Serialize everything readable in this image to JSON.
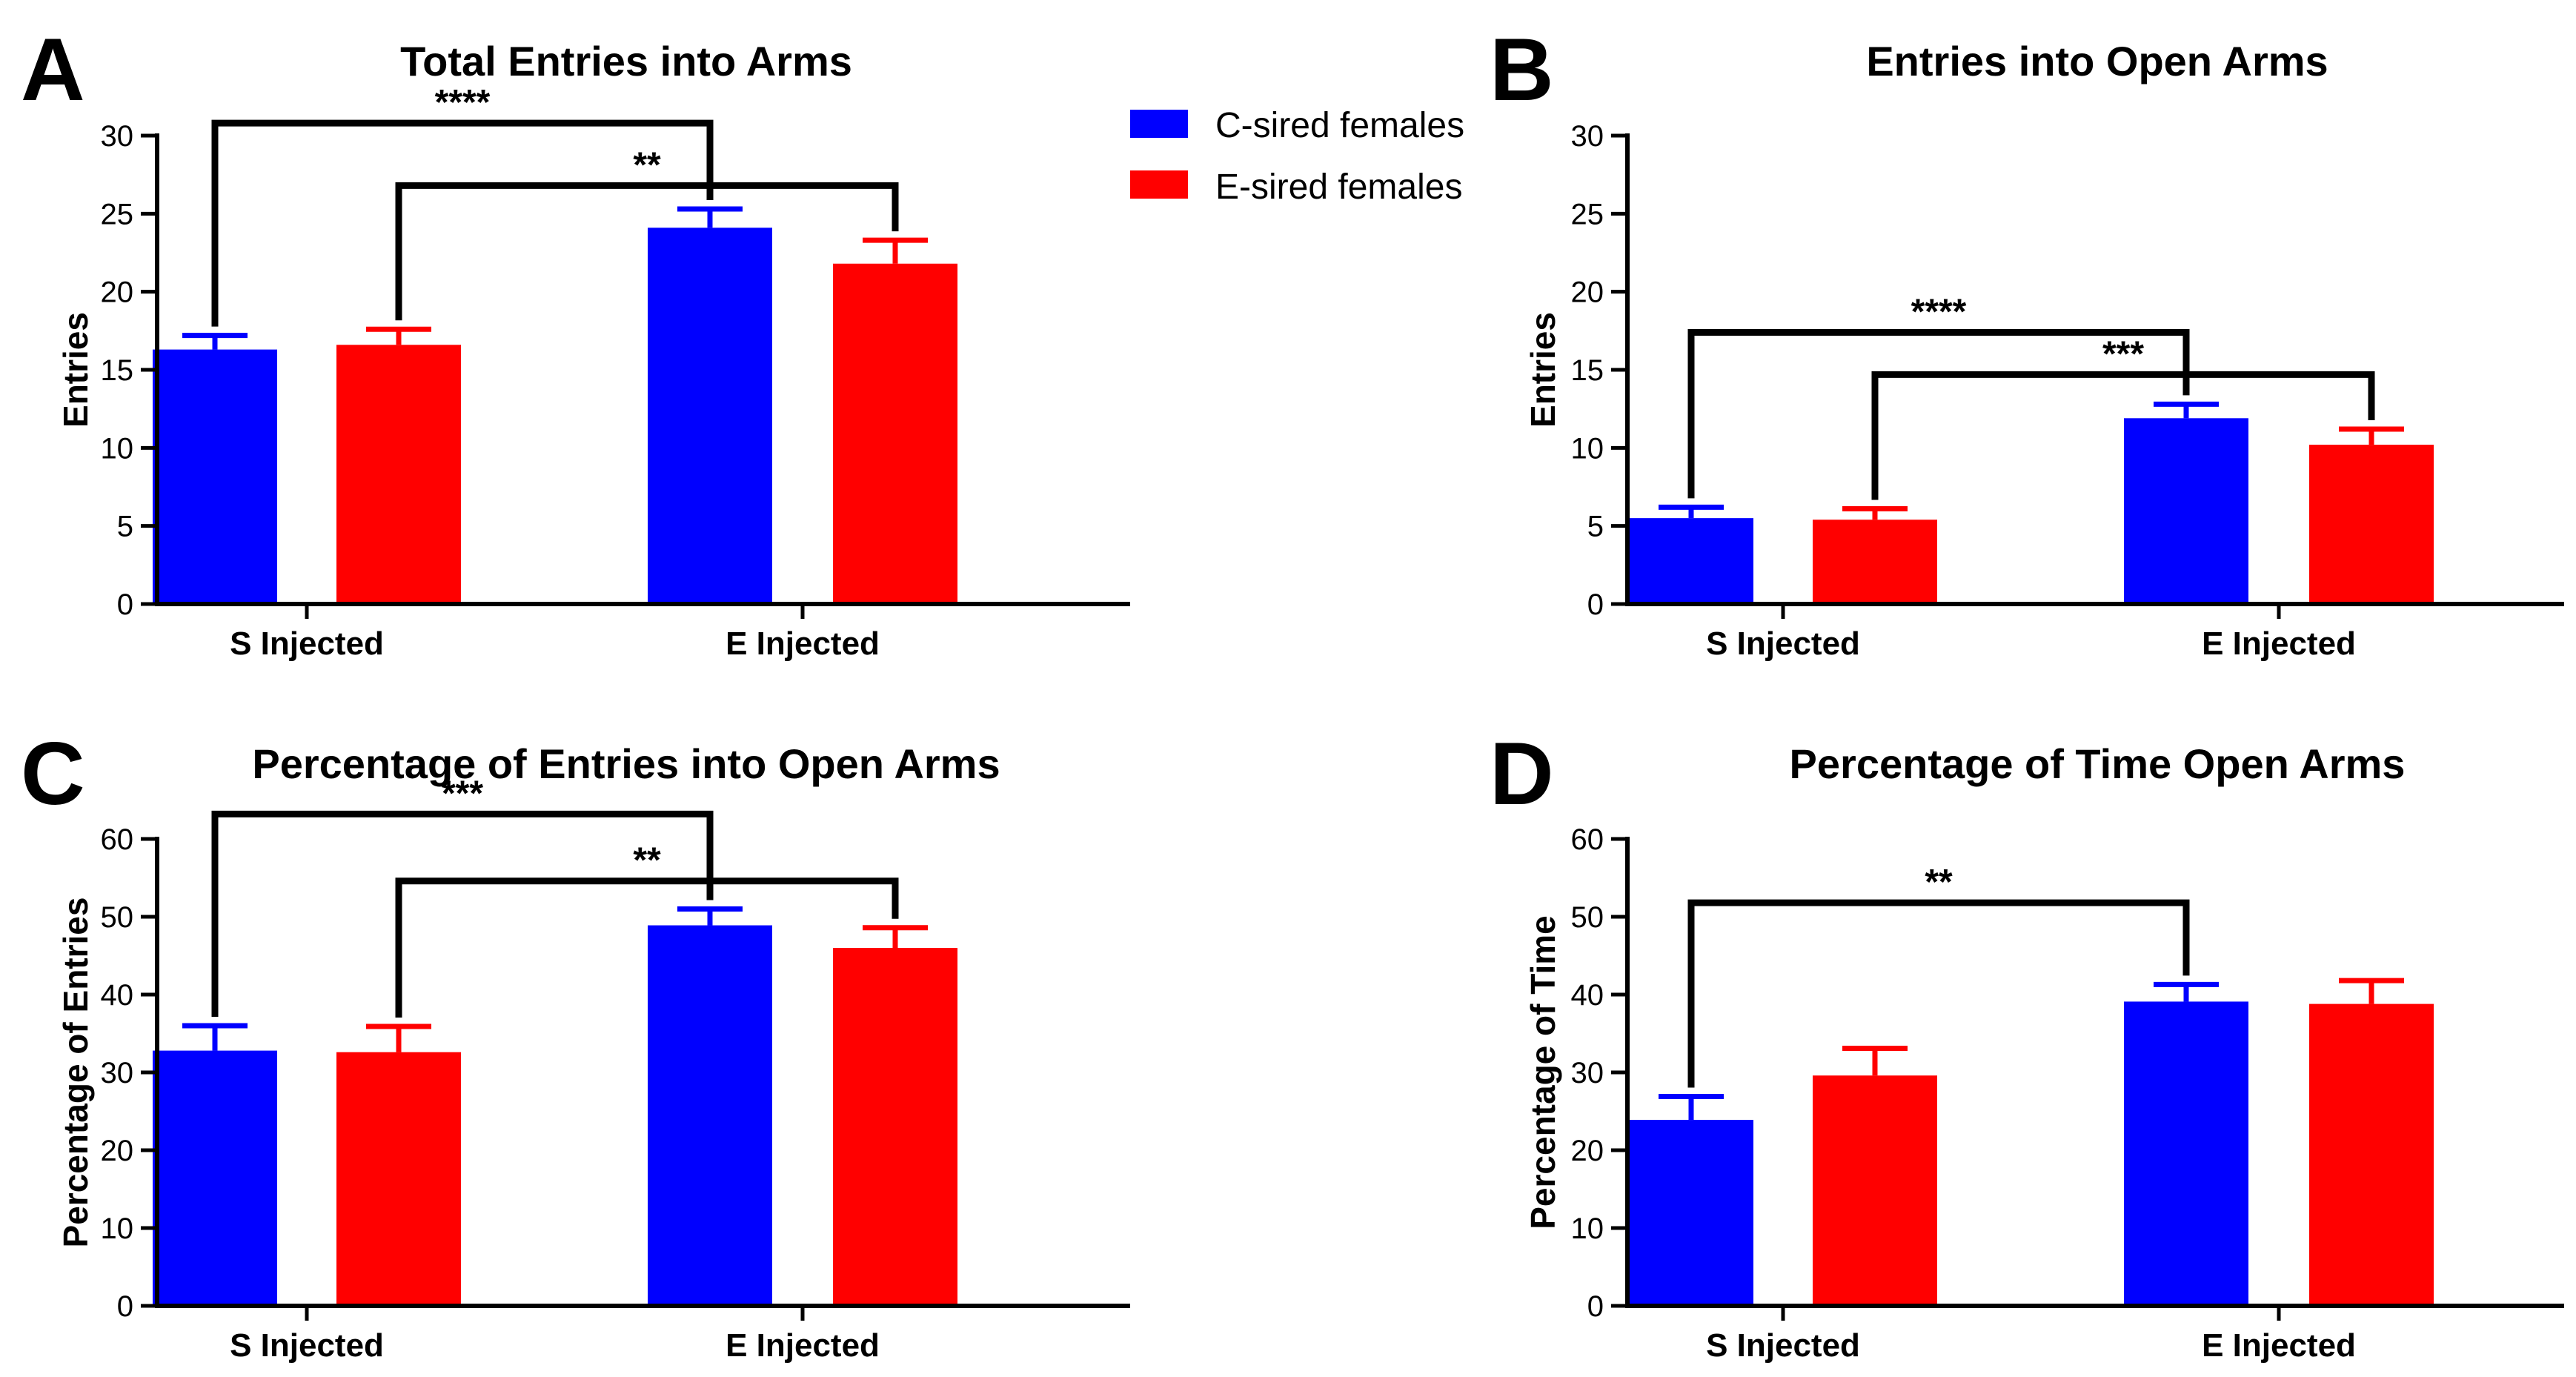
{
  "colors": {
    "c_sired": "#0000ff",
    "e_sired": "#ff0000",
    "axis": "#000000"
  },
  "legend": [
    {
      "label": "C-sired females",
      "color": "#0000ff"
    },
    {
      "label": "E-sired females",
      "color": "#ff0000"
    }
  ],
  "chart_data": [
    {
      "panel": "A",
      "type": "bar",
      "title": "Total Entries into Arms",
      "ylabel": "Entries",
      "xlabel": "",
      "ylim": [
        0,
        30
      ],
      "yticks": [
        0,
        5,
        10,
        15,
        20,
        25,
        30
      ],
      "categories": [
        "S Injected",
        "E Injected"
      ],
      "series": [
        {
          "name": "C-sired females",
          "values": [
            16.3,
            24.1
          ],
          "errors": [
            0.9,
            1.2
          ]
        },
        {
          "name": "E-sired females",
          "values": [
            16.6,
            21.8
          ],
          "errors": [
            1.0,
            1.5
          ]
        }
      ],
      "significance": [
        {
          "label": "****",
          "from": [
            0,
            0
          ],
          "to": [
            1,
            0
          ],
          "y": 30.8
        },
        {
          "label": "**",
          "from": [
            0,
            1
          ],
          "to": [
            1,
            1
          ],
          "y": 26.8
        }
      ]
    },
    {
      "panel": "B",
      "type": "bar",
      "title": "Entries into Open Arms",
      "ylabel": "Entries",
      "xlabel": "",
      "ylim": [
        0,
        30
      ],
      "yticks": [
        0,
        5,
        10,
        15,
        20,
        25,
        30
      ],
      "categories": [
        "S Injected",
        "E Injected"
      ],
      "series": [
        {
          "name": "C-sired females",
          "values": [
            5.5,
            11.9
          ],
          "errors": [
            0.7,
            0.9
          ]
        },
        {
          "name": "E-sired females",
          "values": [
            5.4,
            10.2
          ],
          "errors": [
            0.7,
            1.0
          ]
        }
      ],
      "significance": [
        {
          "label": "****",
          "from": [
            0,
            0
          ],
          "to": [
            1,
            0
          ],
          "y": 17.4
        },
        {
          "label": "***",
          "from": [
            0,
            1
          ],
          "to": [
            1,
            1
          ],
          "y": 14.7
        }
      ]
    },
    {
      "panel": "C",
      "type": "bar",
      "title": "Percentage of Entries into Open Arms",
      "ylabel": "Percentage of Entries",
      "xlabel": "",
      "ylim": [
        0,
        60
      ],
      "yticks": [
        0,
        10,
        20,
        30,
        40,
        50,
        60
      ],
      "categories": [
        "S Injected",
        "E Injected"
      ],
      "series": [
        {
          "name": "C-sired females",
          "values": [
            32.8,
            48.9
          ],
          "errors": [
            3.2,
            2.1
          ]
        },
        {
          "name": "E-sired females",
          "values": [
            32.6,
            46.0
          ],
          "errors": [
            3.3,
            2.6
          ]
        }
      ],
      "significance": [
        {
          "label": "***",
          "from": [
            0,
            0
          ],
          "to": [
            1,
            0
          ],
          "y": 63.2
        },
        {
          "label": "**",
          "from": [
            0,
            1
          ],
          "to": [
            1,
            1
          ],
          "y": 54.6
        }
      ]
    },
    {
      "panel": "D",
      "type": "bar",
      "title": "Percentage of Time Open Arms",
      "ylabel": "Percentage of Time",
      "xlabel": "",
      "ylim": [
        0,
        60
      ],
      "yticks": [
        0,
        10,
        20,
        30,
        40,
        50,
        60
      ],
      "categories": [
        "S Injected",
        "E Injected"
      ],
      "series": [
        {
          "name": "C-sired females",
          "values": [
            23.9,
            39.1
          ],
          "errors": [
            3.0,
            2.2
          ]
        },
        {
          "name": "E-sired females",
          "values": [
            29.6,
            38.8
          ],
          "errors": [
            3.5,
            3.0
          ]
        }
      ],
      "significance": [
        {
          "label": "**",
          "from": [
            0,
            0
          ],
          "to": [
            1,
            0
          ],
          "y": 51.8
        }
      ]
    }
  ]
}
